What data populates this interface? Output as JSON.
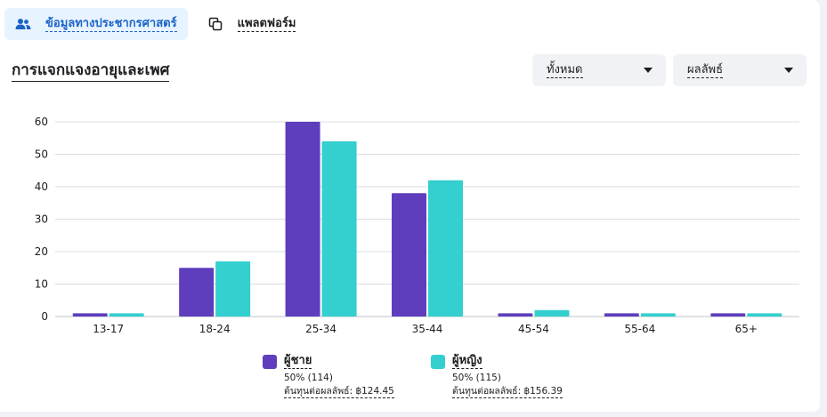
{
  "tabs": [
    {
      "label": "ข้อมูลทางประชากรศาสตร์",
      "icon": "people-icon",
      "active": true
    },
    {
      "label": "แพลตฟอร์ม",
      "icon": "copy-icon",
      "active": false
    }
  ],
  "section_title": "การแจกแจงอายุและเพศ",
  "filters": {
    "audience": "ทั้งหมด",
    "metric": "ผลลัพธ์"
  },
  "colors": {
    "male": "#5e3ebd",
    "female": "#34cfcf",
    "accent": "#1b64c8"
  },
  "chart_data": {
    "type": "bar",
    "categories": [
      "13-17",
      "18-24",
      "25-34",
      "35-44",
      "45-54",
      "55-64",
      "65+"
    ],
    "series": [
      {
        "name": "ผู้ชาย",
        "values": [
          1,
          15,
          60,
          38,
          1,
          1,
          1
        ]
      },
      {
        "name": "ผู้หญิง",
        "values": [
          1,
          17,
          54,
          42,
          2,
          1,
          1
        ]
      }
    ],
    "yticks": [
      "0",
      "10",
      "20",
      "30",
      "40",
      "50",
      "60"
    ],
    "ylim": [
      0,
      60
    ],
    "grid": true,
    "legend": "bottom"
  },
  "legend": [
    {
      "name": "ผู้ชาย",
      "share": "50% (114)",
      "cost": "ต้นทุนต่อผลลัพธ์: ฿124.45"
    },
    {
      "name": "ผู้หญิง",
      "share": "50% (115)",
      "cost": "ต้นทุนต่อผลลัพธ์: ฿156.39"
    }
  ]
}
